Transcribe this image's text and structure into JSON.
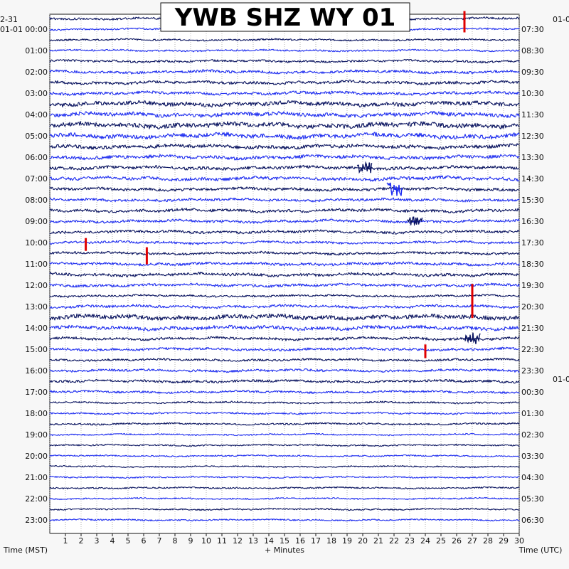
{
  "chart_data": {
    "type": "line",
    "title": "YWB SHZ WY 01",
    "left_date_labels": [
      "2-31",
      "01-01"
    ],
    "right_date_labels": [
      "01-0",
      "01-0"
    ],
    "left_times": [
      "00:00",
      "01:00",
      "02:00",
      "03:00",
      "04:00",
      "05:00",
      "06:00",
      "07:00",
      "08:00",
      "09:00",
      "10:00",
      "11:00",
      "12:00",
      "13:00",
      "14:00",
      "15:00",
      "16:00",
      "17:00",
      "18:00",
      "19:00",
      "20:00",
      "21:00",
      "22:00",
      "23:00"
    ],
    "right_times": [
      "07:30",
      "08:30",
      "09:30",
      "10:30",
      "11:30",
      "12:30",
      "13:30",
      "14:30",
      "15:30",
      "16:30",
      "17:30",
      "18:30",
      "19:30",
      "20:30",
      "21:30",
      "22:30",
      "23:30",
      "00:30",
      "01:30",
      "02:30",
      "03:30",
      "04:30",
      "05:30",
      "06:30"
    ],
    "x_ticks": [
      "1",
      "2",
      "3",
      "4",
      "5",
      "6",
      "7",
      "8",
      "9",
      "10",
      "11",
      "12",
      "13",
      "14",
      "15",
      "16",
      "17",
      "18",
      "19",
      "20",
      "21",
      "22",
      "23",
      "24",
      "25",
      "26",
      "27",
      "28",
      "29",
      "30"
    ],
    "xlim": [
      0,
      30
    ],
    "xlabel": "+ Minutes",
    "left_axis_label": "Time (MST)",
    "right_axis_label": "Time (UTC)",
    "colors": {
      "navy": "#0a1460",
      "blue": "#1f2ef0",
      "red": "#e00000",
      "background": "#ffffff",
      "grid": "#9a9a9a"
    },
    "rows_per_hour": 2,
    "row_count": 48,
    "row_color_cycle": [
      "navy",
      "blue"
    ],
    "amplitude_by_row": [
      0.45,
      0.35,
      0.35,
      0.35,
      0.45,
      0.55,
      0.6,
      0.6,
      0.85,
      0.8,
      0.95,
      0.9,
      0.75,
      0.7,
      0.65,
      0.7,
      0.6,
      0.55,
      0.6,
      0.55,
      0.55,
      0.5,
      0.5,
      0.55,
      0.6,
      0.55,
      0.4,
      0.55,
      0.9,
      0.75,
      0.55,
      0.5,
      0.45,
      0.5,
      0.5,
      0.45,
      0.35,
      0.35,
      0.35,
      0.3,
      0.3,
      0.3,
      0.3,
      0.3,
      0.3,
      0.3,
      0.3,
      0.3
    ],
    "events": [
      {
        "row": 0,
        "minute": 26.5,
        "amplitude": 2.5,
        "color": "red"
      },
      {
        "row": 14,
        "minute": 20.1,
        "amplitude": 1.3,
        "color": "navy"
      },
      {
        "row": 16,
        "minute": 22.0,
        "amplitude": 1.6,
        "color": "blue"
      },
      {
        "row": 19,
        "minute": 23.3,
        "amplitude": 1.0,
        "color": "navy"
      },
      {
        "row": 21,
        "minute": 2.3,
        "amplitude": 1.5,
        "color": "red"
      },
      {
        "row": 22,
        "minute": 6.2,
        "amplitude": 2.0,
        "color": "red"
      },
      {
        "row": 26,
        "minute": 27.0,
        "amplitude": 4.0,
        "color": "red"
      },
      {
        "row": 30,
        "minute": 27.0,
        "amplitude": 1.5,
        "color": "navy"
      },
      {
        "row": 31,
        "minute": 24.0,
        "amplitude": 1.6,
        "color": "red"
      }
    ]
  }
}
